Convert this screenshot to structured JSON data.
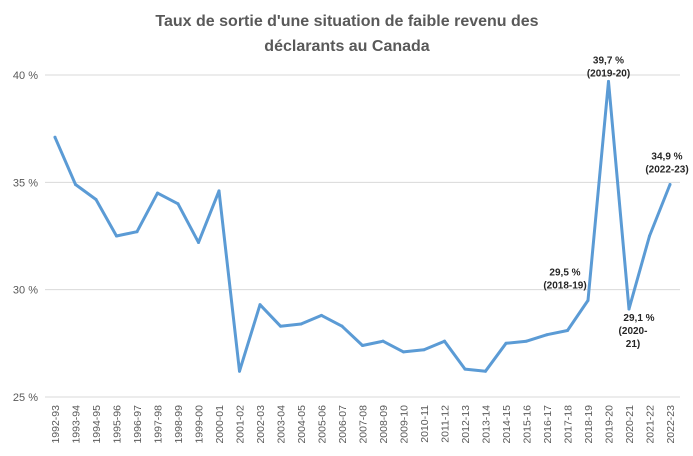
{
  "chart_data": {
    "type": "line",
    "title_lines": [
      "Taux de sortie d'une situation de faible revenu des",
      "déclarants au Canada"
    ],
    "xlabel": "",
    "ylabel": "",
    "ylim": [
      25,
      40
    ],
    "y_ticks": [
      {
        "value": 25,
        "label": "25 %"
      },
      {
        "value": 30,
        "label": "30 %"
      },
      {
        "value": 35,
        "label": "35 %"
      },
      {
        "value": 40,
        "label": "40 %"
      }
    ],
    "grid": true,
    "legend": "none",
    "categories": [
      "1992-93",
      "1993-94",
      "1994-95",
      "1995-96",
      "1996-97",
      "1997-98",
      "1998-99",
      "1999-00",
      "2000-01",
      "2001-02",
      "2002-03",
      "2003-04",
      "2004-05",
      "2005-06",
      "2006-07",
      "2007-08",
      "2008-09",
      "2009-10",
      "2010-11",
      "2011-12",
      "2012-13",
      "2013-14",
      "2014-15",
      "2015-16",
      "2016-17",
      "2017-18",
      "2018-19",
      "2019-20",
      "2020-21",
      "2021-22",
      "2022-23"
    ],
    "series": [
      {
        "color": "#5b9bd5",
        "values": [
          37.1,
          34.9,
          34.2,
          32.5,
          32.7,
          34.5,
          34.0,
          32.2,
          34.6,
          26.2,
          29.3,
          28.3,
          28.4,
          28.8,
          28.3,
          27.4,
          27.6,
          27.1,
          27.2,
          27.6,
          26.3,
          26.2,
          27.5,
          27.6,
          27.9,
          28.1,
          29.5,
          39.7,
          29.1,
          32.5,
          34.9
        ]
      }
    ],
    "annotations": [
      {
        "index": 26,
        "lines": [
          "29,5 %",
          "(2018-19)"
        ]
      },
      {
        "index": 27,
        "lines": [
          "39,7 %",
          "(2019-20)"
        ]
      },
      {
        "index": 28,
        "lines": [
          "29,1 %",
          "(2020-",
          "21)"
        ]
      },
      {
        "index": 30,
        "lines": [
          "34,9 %",
          "(2022-23)"
        ]
      }
    ]
  }
}
